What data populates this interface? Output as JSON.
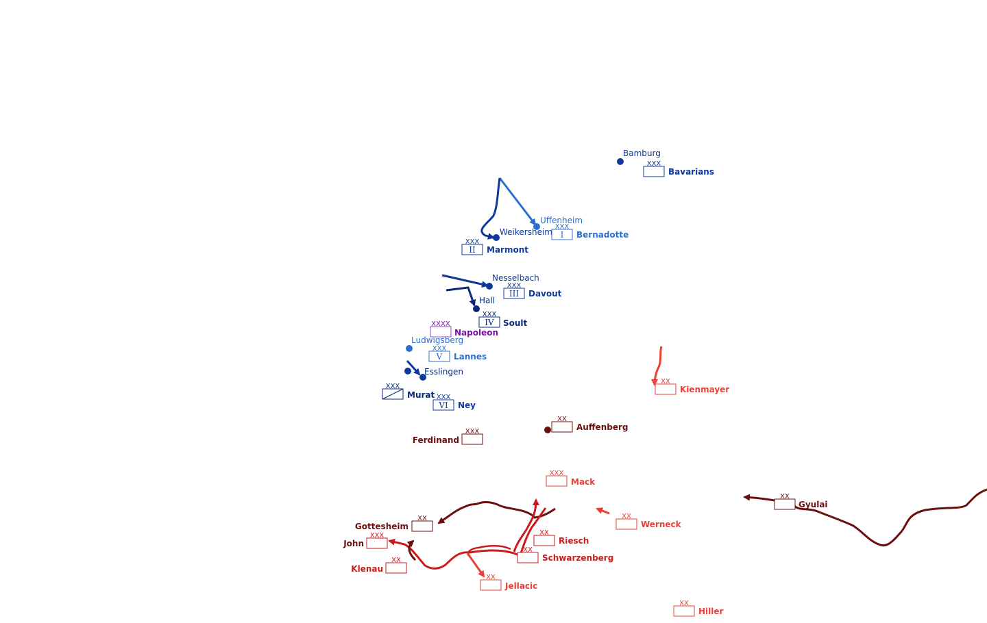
{
  "colors": {
    "french_dark": "#0a2a78",
    "french_mid": "#0d3a9a",
    "french_light": "#2d6fd0",
    "napoleon": "#7a12a8",
    "austrian_dark": "#6b0f0f",
    "austrian_mid": "#cc1a1a",
    "austrian_light": "#ea4036"
  },
  "towns": {
    "bamburg": "Bamburg",
    "uffenheim": "Uffenheim",
    "weikersheim": "Weikersheim",
    "nesselbach": "Nesselbach",
    "hall": "Hall",
    "ludwigsberg": "Ludwigsberg",
    "esslingen": "Esslingen"
  },
  "units": {
    "bavarians": {
      "name": "Bavarians",
      "echelon": "XXX",
      "number": ""
    },
    "bernadotte": {
      "name": "Bernadotte",
      "echelon": "XXX",
      "number": "I"
    },
    "marmont": {
      "name": "Marmont",
      "echelon": "XXX",
      "number": "II"
    },
    "davout": {
      "name": "Davout",
      "echelon": "XXX",
      "number": "III"
    },
    "soult": {
      "name": "Soult",
      "echelon": "XXX",
      "number": "IV"
    },
    "napoleon": {
      "name": "Napoleon",
      "echelon": "XXXX",
      "number": ""
    },
    "lannes": {
      "name": "Lannes",
      "echelon": "XXX",
      "number": "V"
    },
    "murat": {
      "name": "Murat",
      "echelon": "XXX",
      "number": ""
    },
    "ney": {
      "name": "Ney",
      "echelon": "XXX",
      "number": "VI"
    },
    "kienmayer": {
      "name": "Kienmayer",
      "echelon": "XX",
      "number": ""
    },
    "auffenberg": {
      "name": "Auffenberg",
      "echelon": "XX",
      "number": ""
    },
    "ferdinand": {
      "name": "Ferdinand",
      "echelon": "XXX",
      "number": ""
    },
    "mack": {
      "name": "Mack",
      "echelon": "XXX",
      "number": ""
    },
    "gyulai": {
      "name": "Gyulai",
      "echelon": "XX",
      "number": ""
    },
    "werneck": {
      "name": "Werneck",
      "echelon": "XX",
      "number": ""
    },
    "gottesheim": {
      "name": "Gottesheim",
      "echelon": "XX",
      "number": ""
    },
    "riesch": {
      "name": "Riesch",
      "echelon": "XX",
      "number": ""
    },
    "john": {
      "name": "John",
      "echelon": "XXX",
      "number": ""
    },
    "schwarzenberg": {
      "name": "Schwarzenberg",
      "echelon": "XX",
      "number": ""
    },
    "klenau": {
      "name": "Klenau",
      "echelon": "XX",
      "number": ""
    },
    "jellacic": {
      "name": "Jellacic",
      "echelon": "XX",
      "number": ""
    },
    "hiller": {
      "name": "Hiller",
      "echelon": "XX",
      "number": ""
    }
  }
}
